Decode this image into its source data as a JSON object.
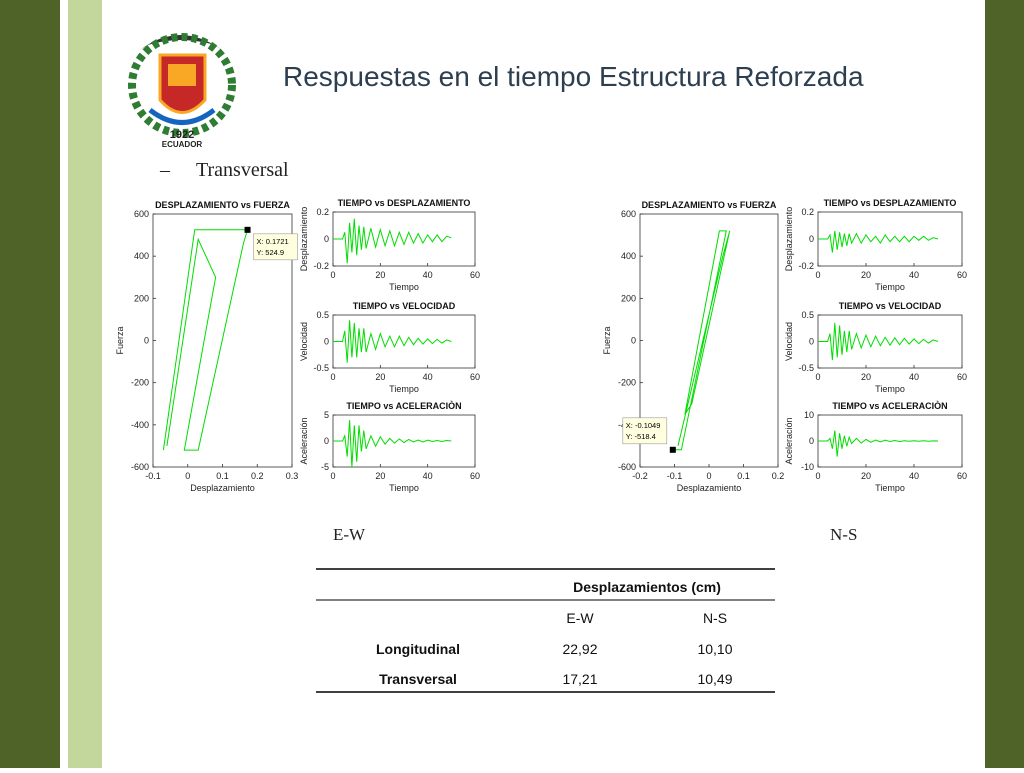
{
  "header": {
    "title": "Respuestas en el tiempo Estructura Reforzada",
    "bullet": "–",
    "subtitle": "Transversal"
  },
  "logo": {
    "year": "1922",
    "name": "ECUADOR"
  },
  "captions": [
    "E-W",
    "N-S"
  ],
  "charts": [
    {
      "type": "line",
      "title": "DESPLAZAMIENTO vs FUERZA",
      "xlabel": "Desplazamiento",
      "ylabel": "Fuerza",
      "xlim": [
        -0.1,
        0.3
      ],
      "xticks": [
        -0.1,
        0,
        0.1,
        0.2,
        0.3
      ],
      "ylim": [
        -600,
        600
      ],
      "yticks": [
        -600,
        -400,
        -200,
        0,
        200,
        400,
        600
      ],
      "series": [
        {
          "color": "#00dd00",
          "x": [
            -0.07,
            0.02,
            0.172,
            0.16,
            0.03,
            -0.01,
            0.08,
            0.03,
            -0.06
          ],
          "values": [
            -520,
            525,
            525,
            460,
            -520,
            -520,
            300,
            480,
            -500
          ]
        }
      ],
      "datatip": {
        "x": 0.1721,
        "y": 524.9,
        "label_x": "X: 0.1721",
        "label_y": "Y: 524.9"
      }
    },
    {
      "type": "line",
      "title": "TIEMPO vs DESPLAZAMIENTO",
      "xlabel": "Tiempo",
      "ylabel": "Desplazamiento",
      "xlim": [
        0,
        60
      ],
      "xticks": [
        0,
        20,
        40,
        60
      ],
      "ylim": [
        -0.2,
        0.2
      ],
      "yticks": [
        -0.2,
        0,
        0.2
      ],
      "series": [
        {
          "color": "#00dd00",
          "x": [
            0,
            2,
            4,
            5,
            6,
            7,
            8,
            9,
            10,
            11,
            12,
            13,
            14,
            16,
            18,
            20,
            22,
            24,
            26,
            28,
            30,
            32,
            34,
            36,
            38,
            40,
            42,
            44,
            46,
            48,
            50
          ],
          "values": [
            0,
            0,
            0,
            0.05,
            -0.18,
            0.12,
            -0.1,
            0.15,
            -0.12,
            0.1,
            -0.08,
            0.09,
            -0.07,
            0.08,
            -0.06,
            0.07,
            -0.05,
            0.06,
            -0.05,
            0.05,
            -0.04,
            0.05,
            -0.03,
            0.04,
            -0.03,
            0.03,
            -0.02,
            0.03,
            -0.02,
            0.02,
            0.01
          ]
        }
      ]
    },
    {
      "type": "line",
      "title": "TIEMPO vs VELOCIDAD",
      "xlabel": "Tiempo",
      "ylabel": "Velocidad",
      "xlim": [
        0,
        60
      ],
      "xticks": [
        0,
        20,
        40,
        60
      ],
      "ylim": [
        -0.5,
        0.5
      ],
      "yticks": [
        -0.5,
        0,
        0.5
      ],
      "series": [
        {
          "color": "#00dd00",
          "x": [
            0,
            2,
            4,
            5,
            6,
            7,
            8,
            9,
            10,
            11,
            12,
            13,
            14,
            16,
            18,
            20,
            22,
            24,
            26,
            28,
            30,
            32,
            34,
            36,
            38,
            40,
            42,
            44,
            46,
            48,
            50
          ],
          "values": [
            0,
            0,
            0,
            0.2,
            -0.4,
            0.4,
            -0.3,
            0.35,
            -0.3,
            0.25,
            -0.2,
            0.25,
            -0.2,
            0.15,
            -0.15,
            0.15,
            -0.1,
            0.1,
            -0.1,
            0.1,
            -0.08,
            0.08,
            -0.06,
            0.06,
            -0.05,
            0.05,
            -0.04,
            0.04,
            -0.03,
            0.03,
            0
          ]
        }
      ]
    },
    {
      "type": "line",
      "title": "TIEMPO vs ACELERACIÒN",
      "xlabel": "Tiempo",
      "ylabel": "Aceleración",
      "xlim": [
        0,
        60
      ],
      "xticks": [
        0,
        20,
        40,
        60
      ],
      "ylim": [
        -5,
        5
      ],
      "yticks": [
        -5,
        0,
        5
      ],
      "series": [
        {
          "color": "#00dd00",
          "x": [
            0,
            2,
            4,
            5,
            6,
            7,
            8,
            9,
            10,
            11,
            12,
            13,
            14,
            16,
            18,
            20,
            22,
            24,
            26,
            28,
            30,
            32,
            34,
            36,
            38,
            40,
            42,
            44,
            46,
            48,
            50
          ],
          "values": [
            0,
            0,
            0,
            1,
            -3,
            4,
            -5,
            3,
            -4,
            3,
            -2,
            2,
            -1.5,
            1,
            -1,
            0.8,
            -0.6,
            0.5,
            -0.4,
            0.4,
            -0.3,
            0.3,
            -0.2,
            0.2,
            -0.2,
            0.15,
            -0.1,
            0.1,
            -0.1,
            0.1,
            0
          ]
        }
      ]
    },
    {
      "type": "line",
      "title": "DESPLAZAMIENTO vs FUERZA",
      "xlabel": "Desplazamiento",
      "ylabel": "Fuerza",
      "xlim": [
        -0.2,
        0.2
      ],
      "xticks": [
        -0.2,
        -0.1,
        0,
        0.1,
        0.2
      ],
      "ylim": [
        -600,
        600
      ],
      "yticks": [
        -600,
        -400,
        -200,
        0,
        200,
        400,
        600
      ],
      "series": [
        {
          "color": "#00dd00",
          "x": [
            -0.1049,
            -0.08,
            0.05,
            0.03,
            -0.07,
            -0.05,
            0.06,
            0.04,
            -0.09
          ],
          "values": [
            -518.4,
            -518.4,
            520,
            520,
            -350,
            -300,
            520,
            400,
            -500
          ]
        }
      ],
      "datatip": {
        "x": -0.1049,
        "y": -518.4,
        "label_x": "X: -0.1049",
        "label_y": "Y: -518.4"
      }
    },
    {
      "type": "line",
      "title": "TIEMPO vs DESPLAZAMIENTO",
      "xlabel": "Tiempo",
      "ylabel": "Desplazamiento",
      "xlim": [
        0,
        60
      ],
      "xticks": [
        0,
        20,
        40,
        60
      ],
      "ylim": [
        -0.2,
        0.2
      ],
      "yticks": [
        -0.2,
        0,
        0.2
      ],
      "series": [
        {
          "color": "#00dd00",
          "x": [
            0,
            2,
            4,
            5,
            6,
            7,
            8,
            9,
            10,
            11,
            12,
            13,
            14,
            16,
            18,
            20,
            22,
            24,
            26,
            28,
            30,
            32,
            34,
            36,
            38,
            40,
            42,
            44,
            46,
            48,
            50
          ],
          "values": [
            0,
            0,
            0,
            0.03,
            -0.1,
            0.06,
            -0.08,
            0.05,
            -0.06,
            0.04,
            -0.05,
            0.04,
            -0.03,
            0.04,
            -0.03,
            0.03,
            -0.02,
            0.02,
            -0.03,
            0.03,
            -0.02,
            0.02,
            -0.02,
            0.02,
            -0.02,
            0.02,
            -0.01,
            0.02,
            -0.01,
            0.01,
            0
          ]
        }
      ]
    },
    {
      "type": "line",
      "title": "TIEMPO vs VELOCIDAD",
      "xlabel": "Tiempo",
      "ylabel": "Velocidad",
      "xlim": [
        0,
        60
      ],
      "xticks": [
        0,
        20,
        40,
        60
      ],
      "ylim": [
        -0.5,
        0.5
      ],
      "yticks": [
        -0.5,
        0,
        0.5
      ],
      "series": [
        {
          "color": "#00dd00",
          "x": [
            0,
            2,
            4,
            5,
            6,
            7,
            8,
            9,
            10,
            11,
            12,
            13,
            14,
            16,
            18,
            20,
            22,
            24,
            26,
            28,
            30,
            32,
            34,
            36,
            38,
            40,
            42,
            44,
            46,
            48,
            50
          ],
          "values": [
            0,
            0,
            0,
            0.15,
            -0.35,
            0.35,
            -0.3,
            0.3,
            -0.25,
            0.2,
            -0.2,
            0.2,
            -0.15,
            0.15,
            -0.12,
            0.12,
            -0.1,
            0.1,
            -0.08,
            0.08,
            -0.07,
            0.07,
            -0.06,
            0.06,
            -0.05,
            0.05,
            -0.04,
            0.04,
            -0.03,
            0.03,
            0
          ]
        }
      ]
    },
    {
      "type": "line",
      "title": "TIEMPO vs ACELERACIÒN",
      "xlabel": "Tiempo",
      "ylabel": "Aceleración",
      "xlim": [
        0,
        60
      ],
      "xticks": [
        0,
        20,
        40,
        60
      ],
      "ylim": [
        -10,
        10
      ],
      "yticks": [
        -10,
        0,
        10
      ],
      "series": [
        {
          "color": "#00dd00",
          "x": [
            0,
            2,
            4,
            5,
            6,
            7,
            8,
            9,
            10,
            11,
            12,
            13,
            14,
            16,
            18,
            20,
            22,
            24,
            26,
            28,
            30,
            32,
            34,
            36,
            38,
            40,
            42,
            44,
            46,
            48,
            50
          ],
          "values": [
            0,
            0,
            0,
            1,
            -3,
            4,
            -6,
            3,
            -3,
            2,
            -2,
            1.5,
            -1,
            1,
            -0.8,
            0.6,
            -0.5,
            0.4,
            -0.3,
            0.3,
            -0.2,
            0.2,
            -0.2,
            0.1,
            -0.1,
            0.1,
            -0.1,
            0.1,
            -0.1,
            0.05,
            0
          ]
        }
      ]
    }
  ],
  "table": {
    "group_header": "Desplazamientos (cm)",
    "columns": [
      "E-W",
      "N-S"
    ],
    "rows": [
      [
        "Longitudinal",
        "22,92",
        "10,10"
      ],
      [
        "Transversal",
        "17,21",
        "10,49"
      ]
    ]
  }
}
